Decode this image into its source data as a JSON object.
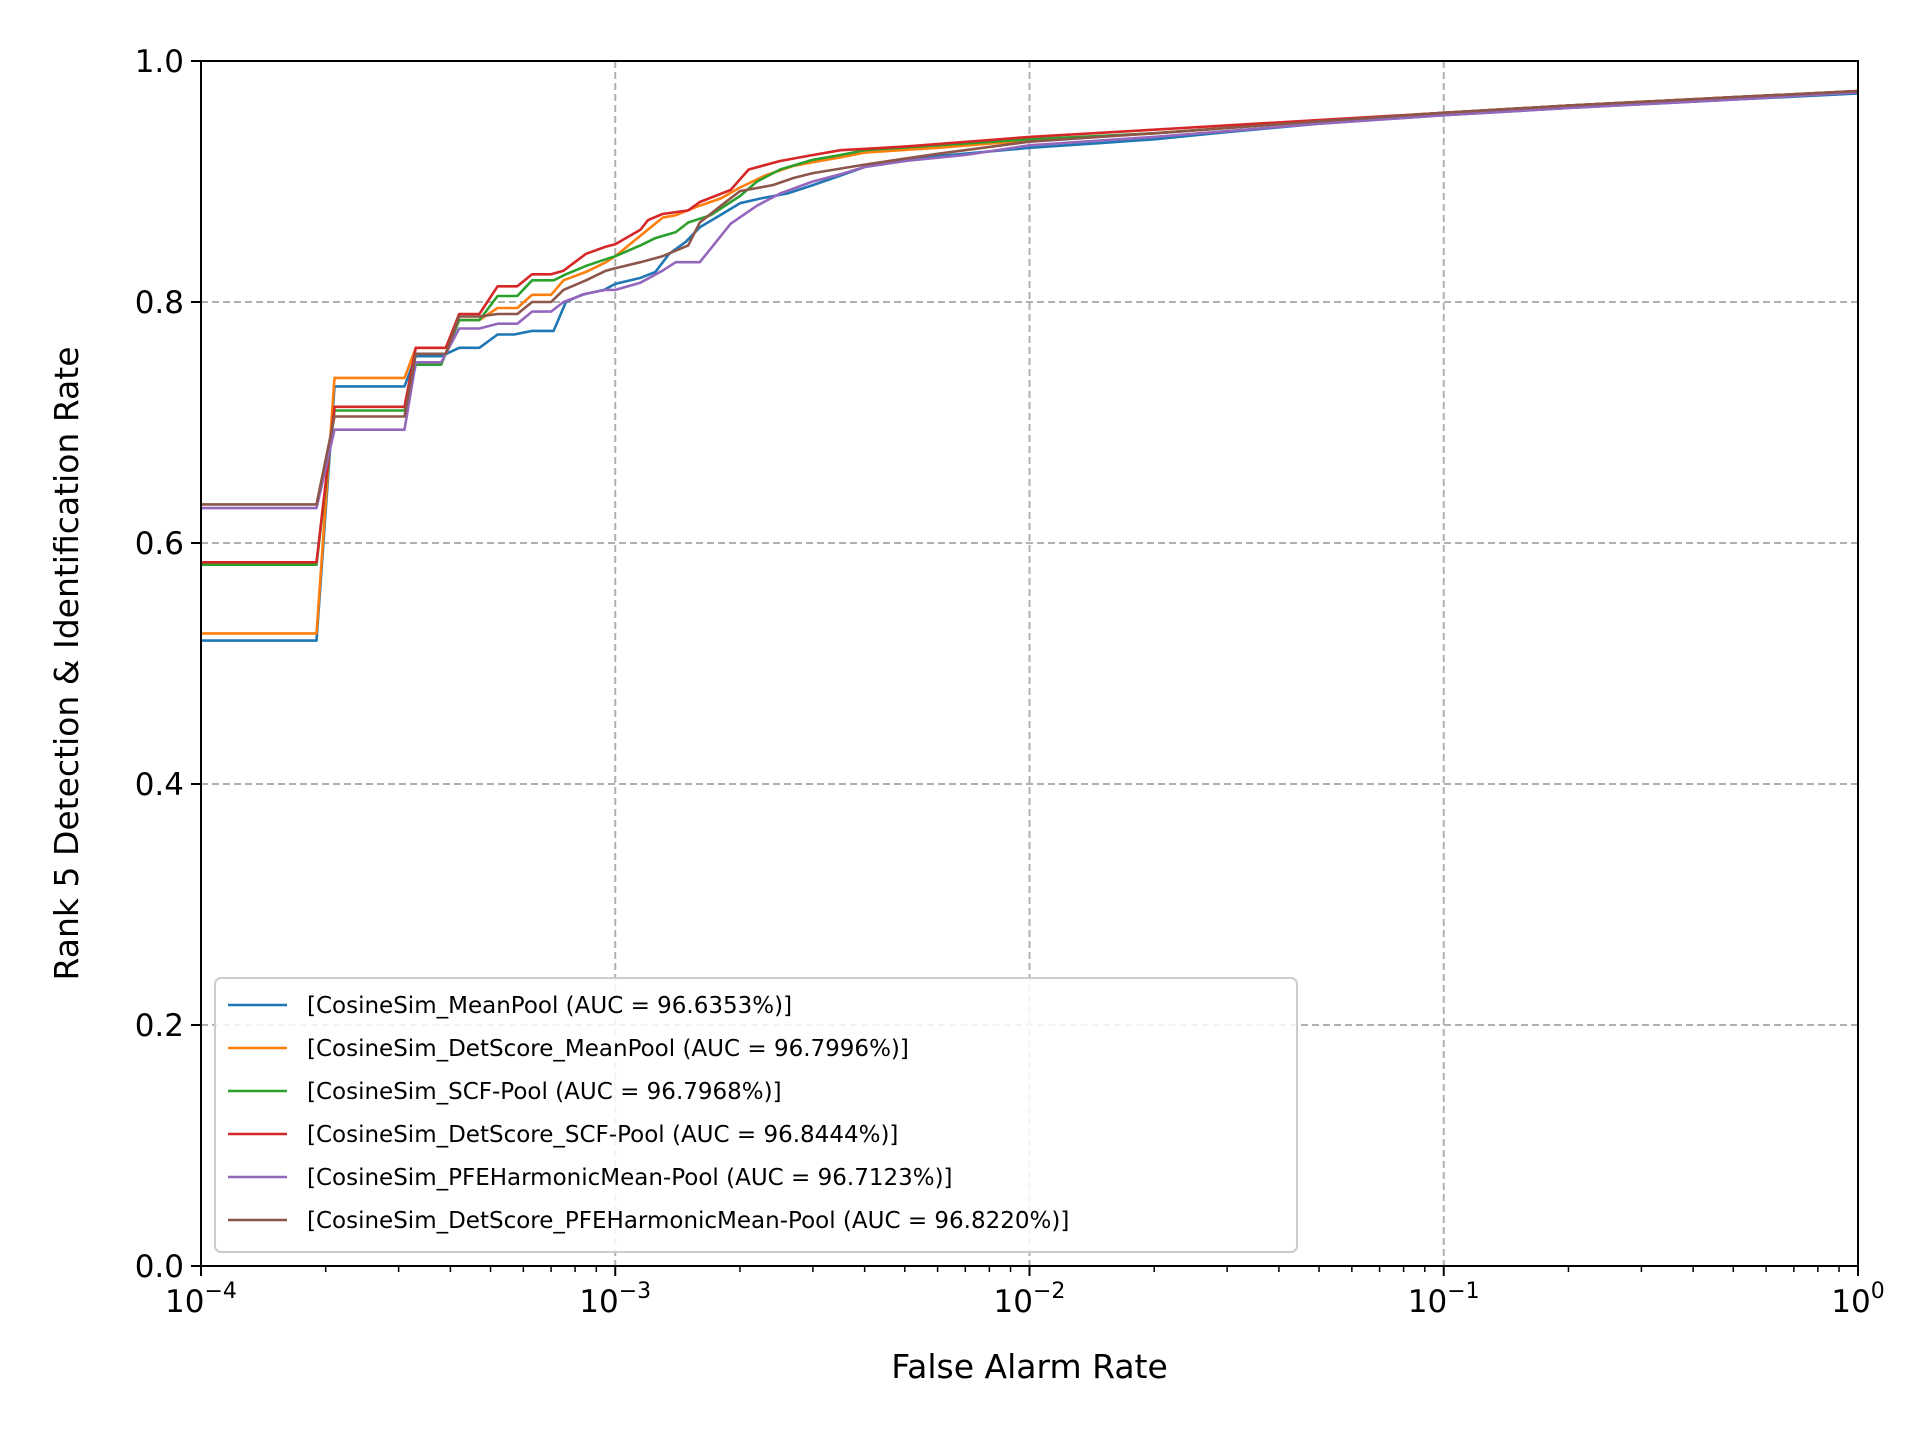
{
  "chart_data": {
    "type": "line",
    "xlabel": "False Alarm Rate",
    "ylabel": "Rank 5 Detection & Identification Rate",
    "xscale": "log",
    "xlim": [
      0.0001,
      1
    ],
    "ylim": [
      0.0,
      1.0
    ],
    "grid": true,
    "legend_position": "lower-left",
    "x_ticks": [
      {
        "value": 0.0001,
        "base": "10",
        "exp": "−4"
      },
      {
        "value": 0.001,
        "base": "10",
        "exp": "−3"
      },
      {
        "value": 0.01,
        "base": "10",
        "exp": "−2"
      },
      {
        "value": 0.1,
        "base": "10",
        "exp": "−1"
      },
      {
        "value": 1,
        "base": "10",
        "exp": "0"
      }
    ],
    "y_ticks": [
      "0.0",
      "0.2",
      "0.4",
      "0.6",
      "0.8",
      "1.0"
    ],
    "series": [
      {
        "name": "[CosineSim_MeanPool (AUC = 96.6353%)]",
        "color": "#1f77b4",
        "points": [
          [
            0.0001,
            0.519
          ],
          [
            0.00019,
            0.519
          ],
          [
            0.00021,
            0.73
          ],
          [
            0.00031,
            0.73
          ],
          [
            0.00033,
            0.755
          ],
          [
            0.00038,
            0.755
          ],
          [
            0.00042,
            0.762
          ],
          [
            0.00047,
            0.762
          ],
          [
            0.00052,
            0.773
          ],
          [
            0.00057,
            0.773
          ],
          [
            0.00063,
            0.776
          ],
          [
            0.00071,
            0.776
          ],
          [
            0.00076,
            0.8
          ],
          [
            0.00083,
            0.806
          ],
          [
            0.00094,
            0.81
          ],
          [
            0.001,
            0.815
          ],
          [
            0.00115,
            0.82
          ],
          [
            0.00125,
            0.825
          ],
          [
            0.00135,
            0.84
          ],
          [
            0.00148,
            0.85
          ],
          [
            0.0016,
            0.862
          ],
          [
            0.00175,
            0.87
          ],
          [
            0.002,
            0.882
          ],
          [
            0.00225,
            0.886
          ],
          [
            0.0026,
            0.89
          ],
          [
            0.003,
            0.897
          ],
          [
            0.0035,
            0.905
          ],
          [
            0.004,
            0.912
          ],
          [
            0.005,
            0.917
          ],
          [
            0.006,
            0.921
          ],
          [
            0.008,
            0.925
          ],
          [
            0.01,
            0.928
          ],
          [
            0.015,
            0.932
          ],
          [
            0.02,
            0.935
          ],
          [
            0.03,
            0.941
          ],
          [
            0.05,
            0.948
          ],
          [
            0.1,
            0.955
          ],
          [
            0.2,
            0.961
          ],
          [
            0.5,
            0.968
          ],
          [
            1,
            0.973
          ]
        ]
      },
      {
        "name": "[CosineSim_DetScore_MeanPool (AUC = 96.7996%)]",
        "color": "#ff7f0e",
        "points": [
          [
            0.0001,
            0.525
          ],
          [
            0.00019,
            0.525
          ],
          [
            0.00021,
            0.737
          ],
          [
            0.00031,
            0.737
          ],
          [
            0.00033,
            0.762
          ],
          [
            0.00039,
            0.762
          ],
          [
            0.00042,
            0.785
          ],
          [
            0.00047,
            0.785
          ],
          [
            0.00052,
            0.795
          ],
          [
            0.00058,
            0.795
          ],
          [
            0.00063,
            0.806
          ],
          [
            0.0007,
            0.806
          ],
          [
            0.00075,
            0.818
          ],
          [
            0.00085,
            0.825
          ],
          [
            0.00095,
            0.833
          ],
          [
            0.001,
            0.838
          ],
          [
            0.00115,
            0.855
          ],
          [
            0.0013,
            0.87
          ],
          [
            0.0014,
            0.872
          ],
          [
            0.0016,
            0.88
          ],
          [
            0.0018,
            0.886
          ],
          [
            0.002,
            0.895
          ],
          [
            0.0023,
            0.905
          ],
          [
            0.0027,
            0.913
          ],
          [
            0.003,
            0.916
          ],
          [
            0.0035,
            0.92
          ],
          [
            0.004,
            0.924
          ],
          [
            0.006,
            0.928
          ],
          [
            0.01,
            0.934
          ],
          [
            0.02,
            0.94
          ],
          [
            0.05,
            0.95
          ],
          [
            0.1,
            0.957
          ],
          [
            0.2,
            0.963
          ],
          [
            0.5,
            0.97
          ],
          [
            1,
            0.975
          ]
        ]
      },
      {
        "name": "[CosineSim_SCF-Pool (AUC = 96.7968%)]",
        "color": "#2ca02c",
        "points": [
          [
            0.0001,
            0.582
          ],
          [
            0.00019,
            0.582
          ],
          [
            0.00021,
            0.71
          ],
          [
            0.00031,
            0.71
          ],
          [
            0.00033,
            0.748
          ],
          [
            0.00038,
            0.748
          ],
          [
            0.00042,
            0.785
          ],
          [
            0.00047,
            0.785
          ],
          [
            0.00052,
            0.805
          ],
          [
            0.00058,
            0.805
          ],
          [
            0.00063,
            0.818
          ],
          [
            0.00071,
            0.818
          ],
          [
            0.00076,
            0.823
          ],
          [
            0.00085,
            0.83
          ],
          [
            0.00094,
            0.835
          ],
          [
            0.001,
            0.838
          ],
          [
            0.00115,
            0.847
          ],
          [
            0.00125,
            0.853
          ],
          [
            0.0014,
            0.858
          ],
          [
            0.0015,
            0.866
          ],
          [
            0.0017,
            0.872
          ],
          [
            0.002,
            0.888
          ],
          [
            0.0022,
            0.9
          ],
          [
            0.0025,
            0.91
          ],
          [
            0.003,
            0.918
          ],
          [
            0.0035,
            0.922
          ],
          [
            0.004,
            0.926
          ],
          [
            0.006,
            0.93
          ],
          [
            0.01,
            0.935
          ],
          [
            0.02,
            0.94
          ],
          [
            0.05,
            0.95
          ],
          [
            0.1,
            0.957
          ],
          [
            0.2,
            0.963
          ],
          [
            0.5,
            0.97
          ],
          [
            1,
            0.975
          ]
        ]
      },
      {
        "name": "[CosineSim_DetScore_SCF-Pool (AUC = 96.8444%)]",
        "color": "#d62728",
        "points": [
          [
            0.0001,
            0.584
          ],
          [
            0.00019,
            0.584
          ],
          [
            0.00021,
            0.713
          ],
          [
            0.00031,
            0.713
          ],
          [
            0.00033,
            0.762
          ],
          [
            0.00039,
            0.762
          ],
          [
            0.00042,
            0.79
          ],
          [
            0.00047,
            0.79
          ],
          [
            0.00052,
            0.813
          ],
          [
            0.00058,
            0.813
          ],
          [
            0.00063,
            0.823
          ],
          [
            0.0007,
            0.823
          ],
          [
            0.00075,
            0.826
          ],
          [
            0.00085,
            0.84
          ],
          [
            0.00095,
            0.846
          ],
          [
            0.001,
            0.848
          ],
          [
            0.00115,
            0.86
          ],
          [
            0.0012,
            0.868
          ],
          [
            0.0013,
            0.873
          ],
          [
            0.0015,
            0.876
          ],
          [
            0.0016,
            0.883
          ],
          [
            0.0019,
            0.893
          ],
          [
            0.0021,
            0.91
          ],
          [
            0.0025,
            0.917
          ],
          [
            0.003,
            0.922
          ],
          [
            0.0035,
            0.926
          ],
          [
            0.005,
            0.929
          ],
          [
            0.01,
            0.937
          ],
          [
            0.02,
            0.943
          ],
          [
            0.05,
            0.951
          ],
          [
            0.1,
            0.957
          ],
          [
            0.2,
            0.963
          ],
          [
            0.5,
            0.97
          ],
          [
            1,
            0.975
          ]
        ]
      },
      {
        "name": "[CosineSim_PFEHarmonicMean-Pool (AUC = 96.7123%)]",
        "color": "#9467bd",
        "points": [
          [
            0.0001,
            0.629
          ],
          [
            0.00019,
            0.629
          ],
          [
            0.00021,
            0.694
          ],
          [
            0.00031,
            0.694
          ],
          [
            0.00033,
            0.75
          ],
          [
            0.00038,
            0.75
          ],
          [
            0.00042,
            0.778
          ],
          [
            0.00047,
            0.778
          ],
          [
            0.00052,
            0.782
          ],
          [
            0.00058,
            0.782
          ],
          [
            0.00063,
            0.792
          ],
          [
            0.0007,
            0.792
          ],
          [
            0.00075,
            0.8
          ],
          [
            0.00085,
            0.807
          ],
          [
            0.00095,
            0.81
          ],
          [
            0.001,
            0.81
          ],
          [
            0.00115,
            0.816
          ],
          [
            0.0013,
            0.826
          ],
          [
            0.0014,
            0.833
          ],
          [
            0.0016,
            0.833
          ],
          [
            0.0019,
            0.865
          ],
          [
            0.0022,
            0.88
          ],
          [
            0.0025,
            0.89
          ],
          [
            0.003,
            0.9
          ],
          [
            0.0035,
            0.906
          ],
          [
            0.004,
            0.912
          ],
          [
            0.005,
            0.917
          ],
          [
            0.007,
            0.922
          ],
          [
            0.01,
            0.93
          ],
          [
            0.02,
            0.937
          ],
          [
            0.05,
            0.948
          ],
          [
            0.1,
            0.955
          ],
          [
            0.2,
            0.961
          ],
          [
            0.5,
            0.968
          ],
          [
            1,
            0.974
          ]
        ]
      },
      {
        "name": "[CosineSim_DetScore_PFEHarmonicMean-Pool (AUC = 96.8220%)]",
        "color": "#8c564b",
        "points": [
          [
            0.0001,
            0.632
          ],
          [
            0.00019,
            0.632
          ],
          [
            0.00021,
            0.705
          ],
          [
            0.00031,
            0.705
          ],
          [
            0.00033,
            0.757
          ],
          [
            0.00039,
            0.757
          ],
          [
            0.00042,
            0.788
          ],
          [
            0.00047,
            0.788
          ],
          [
            0.00052,
            0.79
          ],
          [
            0.00058,
            0.79
          ],
          [
            0.00063,
            0.8
          ],
          [
            0.0007,
            0.8
          ],
          [
            0.00075,
            0.81
          ],
          [
            0.00085,
            0.818
          ],
          [
            0.00095,
            0.826
          ],
          [
            0.001,
            0.828
          ],
          [
            0.00115,
            0.833
          ],
          [
            0.0013,
            0.838
          ],
          [
            0.0015,
            0.847
          ],
          [
            0.0016,
            0.866
          ],
          [
            0.0018,
            0.88
          ],
          [
            0.002,
            0.892
          ],
          [
            0.0024,
            0.897
          ],
          [
            0.0027,
            0.903
          ],
          [
            0.003,
            0.907
          ],
          [
            0.004,
            0.914
          ],
          [
            0.006,
            0.923
          ],
          [
            0.01,
            0.933
          ],
          [
            0.02,
            0.94
          ],
          [
            0.05,
            0.95
          ],
          [
            0.1,
            0.957
          ],
          [
            0.2,
            0.963
          ],
          [
            0.5,
            0.97
          ],
          [
            1,
            0.975
          ]
        ]
      }
    ]
  }
}
